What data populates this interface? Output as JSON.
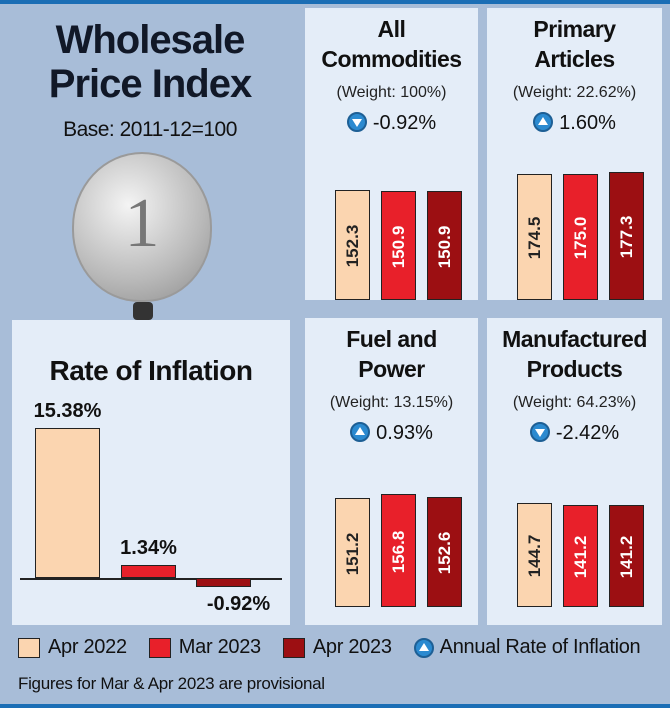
{
  "header": {
    "title_line1": "Wholesale",
    "title_line2": "Price Index",
    "base": "Base: 2011-12=100"
  },
  "colors": {
    "apr2022": "#fbd5b0",
    "mar2023": "#e8202a",
    "apr2023": "#9c0f12",
    "up_icon": "#2b8ad0"
  },
  "chart_data": [
    {
      "type": "bar",
      "title": "All Commodities",
      "weight": "(Weight: 100%)",
      "change": "-0.92%",
      "direction": "down",
      "categories": [
        "Apr 2022",
        "Mar 2023",
        "Apr 2023"
      ],
      "values": [
        152.3,
        150.9,
        150.9
      ],
      "labels": [
        "152.3",
        "150.9",
        "150.9"
      ]
    },
    {
      "type": "bar",
      "title": "Primary Articles",
      "weight": "(Weight: 22.62%)",
      "change": "1.60%",
      "direction": "up",
      "categories": [
        "Apr 2022",
        "Mar 2023",
        "Apr 2023"
      ],
      "values": [
        174.5,
        175.0,
        177.3
      ],
      "labels": [
        "174.5",
        "175.0",
        "177.3"
      ]
    },
    {
      "type": "bar",
      "title": "Fuel and Power",
      "weight": "(Weight: 13.15%)",
      "change": "0.93%",
      "direction": "up",
      "categories": [
        "Apr 2022",
        "Mar 2023",
        "Apr 2023"
      ],
      "values": [
        151.2,
        156.8,
        152.6
      ],
      "labels": [
        "151.2",
        "156.8",
        "152.6"
      ]
    },
    {
      "type": "bar",
      "title": "Manufactured Products",
      "weight": "(Weight: 64.23%)",
      "change": "-2.42%",
      "direction": "down",
      "categories": [
        "Apr 2022",
        "Mar 2023",
        "Apr 2023"
      ],
      "values": [
        144.7,
        141.2,
        141.2
      ],
      "labels": [
        "144.7",
        "141.2",
        "141.2"
      ]
    },
    {
      "type": "bar",
      "title": "Rate of Inflation",
      "categories": [
        "Apr 2022",
        "Mar 2023",
        "Apr 2023"
      ],
      "values": [
        15.38,
        1.34,
        -0.92
      ],
      "labels": [
        "15.38%",
        "1.34%",
        "-0.92%"
      ]
    }
  ],
  "legend": {
    "items": [
      "Apr 2022",
      "Mar 2023",
      "Apr 2023"
    ],
    "annual": "Annual Rate of Inflation"
  },
  "footnote": "Figures for Mar & Apr 2023 are provisional"
}
